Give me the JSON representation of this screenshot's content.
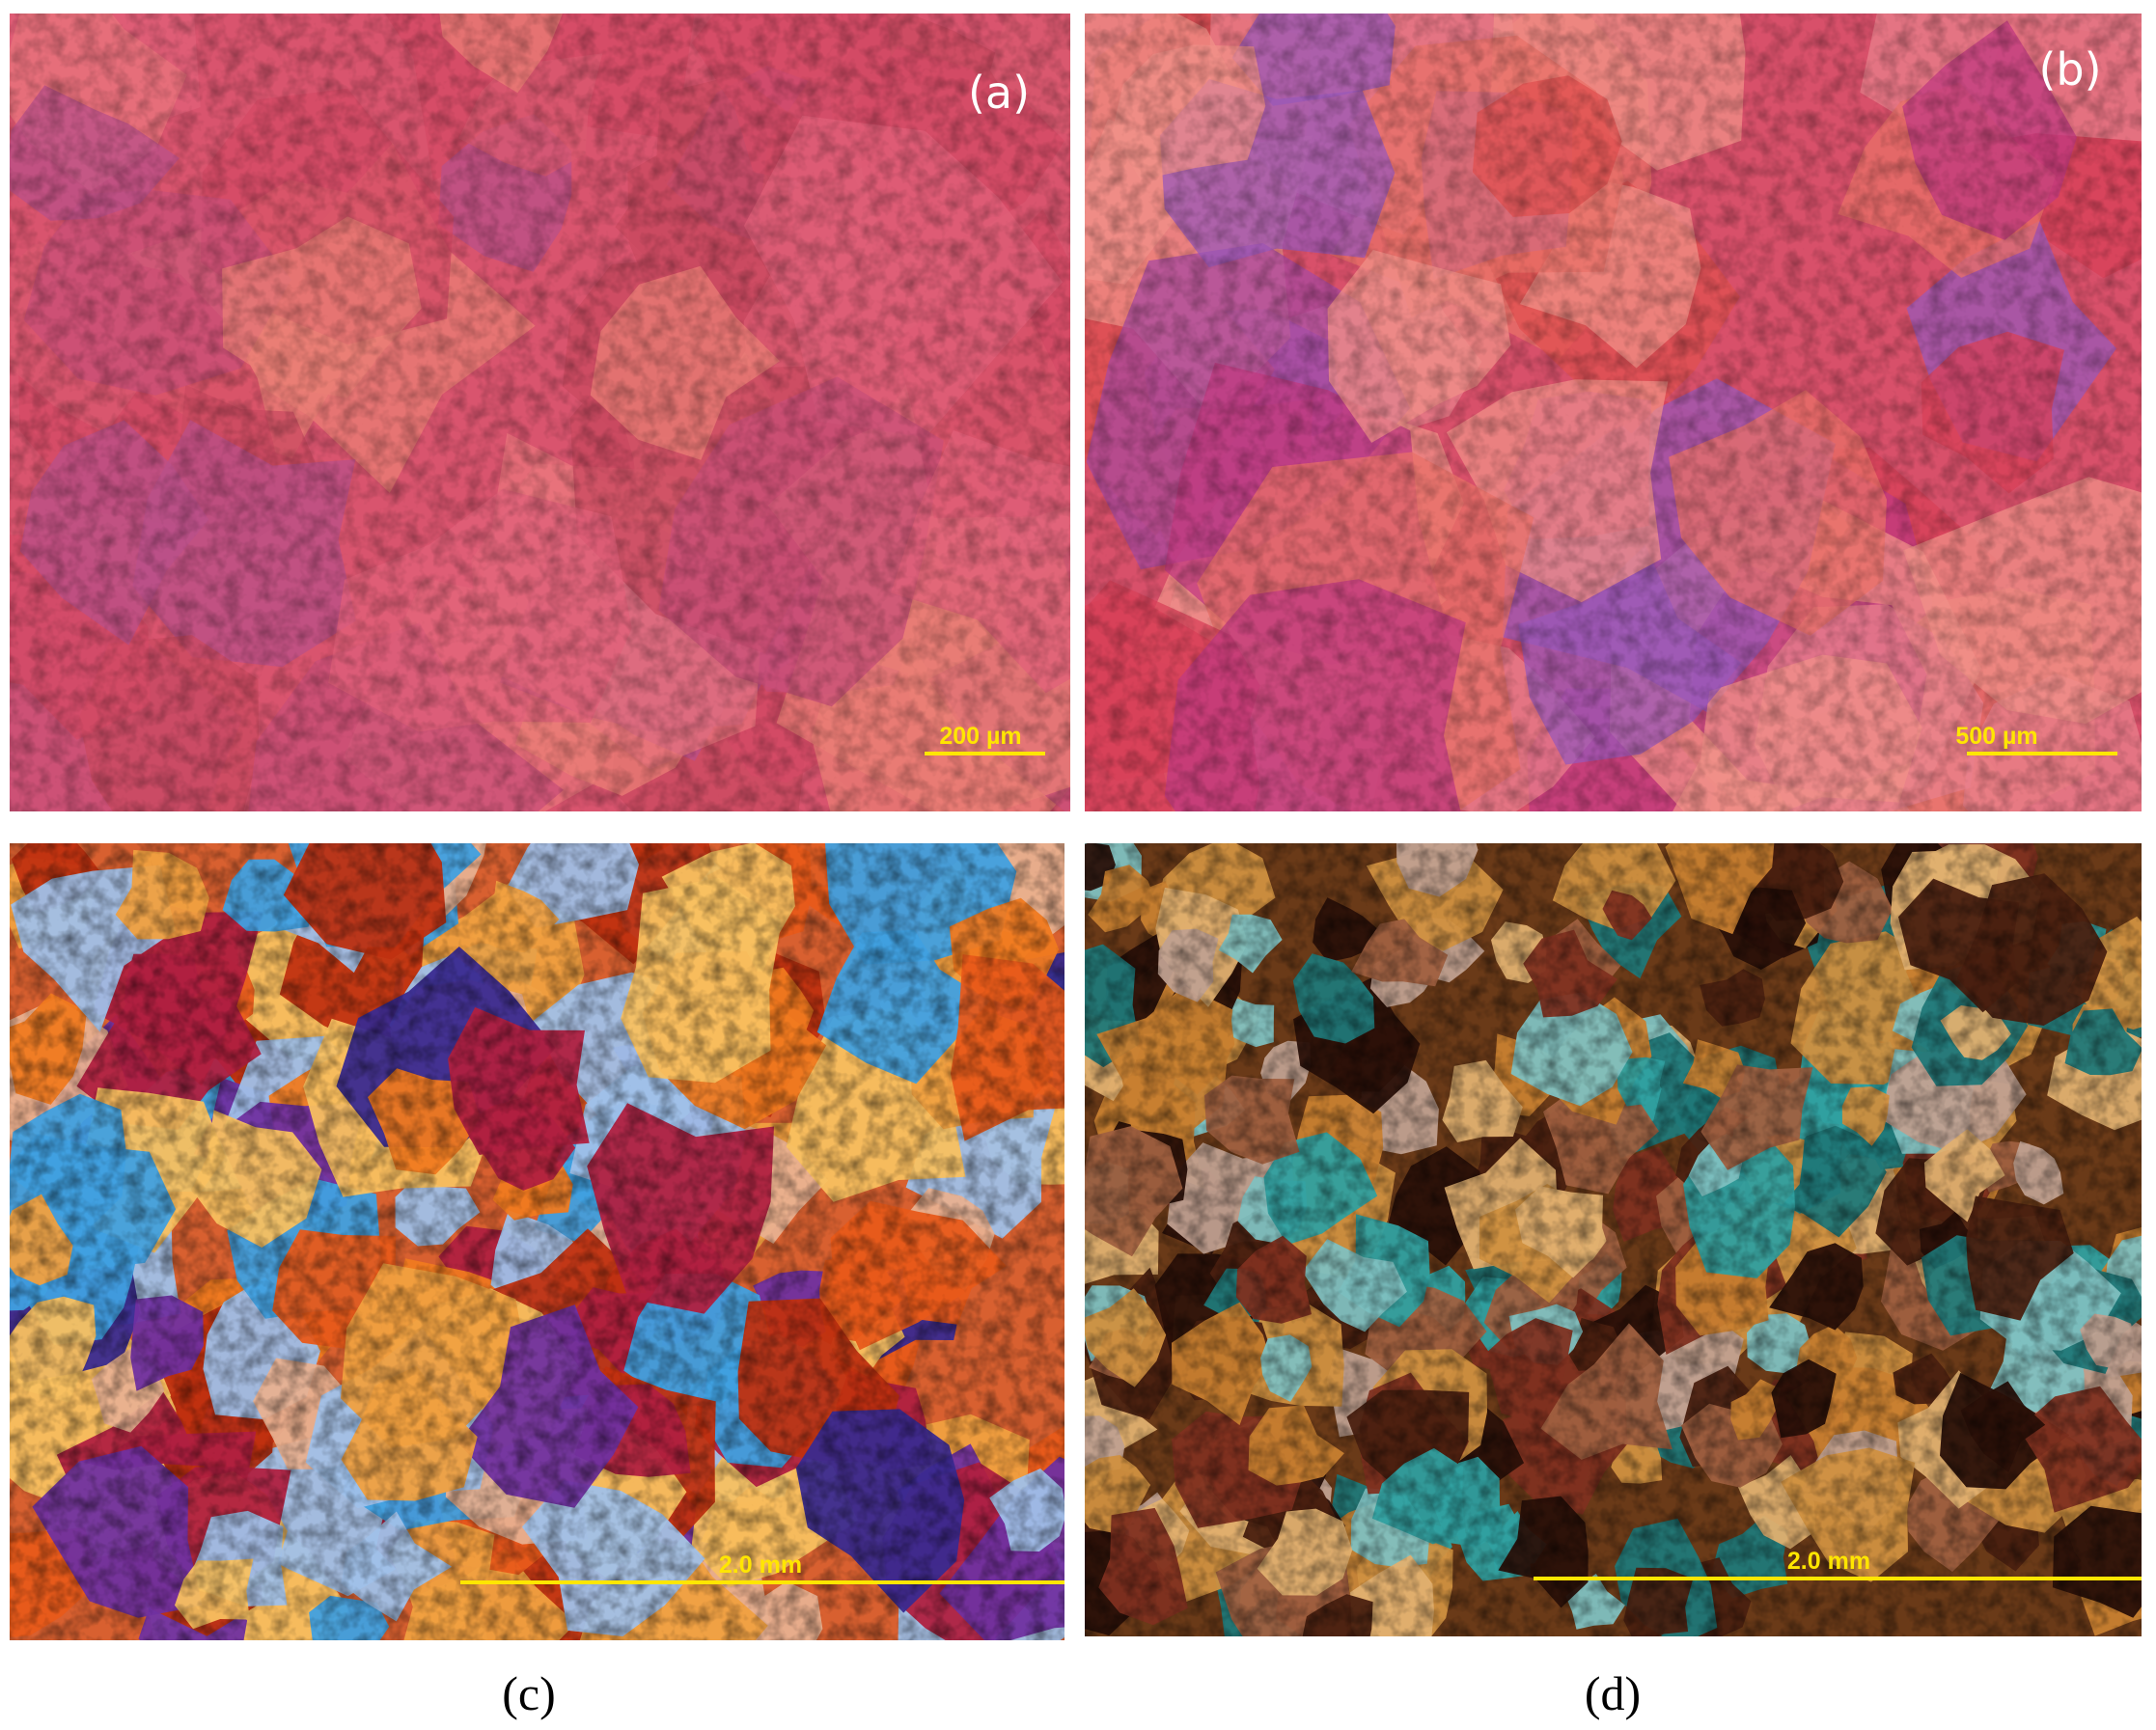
{
  "panels": [
    {
      "label": "(a)",
      "scale_bar": "200 µm"
    },
    {
      "label": "(b)",
      "scale_bar": "500 µm"
    },
    {
      "scale_bar": "2.0 mm",
      "caption": "(c)"
    },
    {
      "scale_bar": "2.0 mm",
      "caption": "(d)"
    }
  ]
}
